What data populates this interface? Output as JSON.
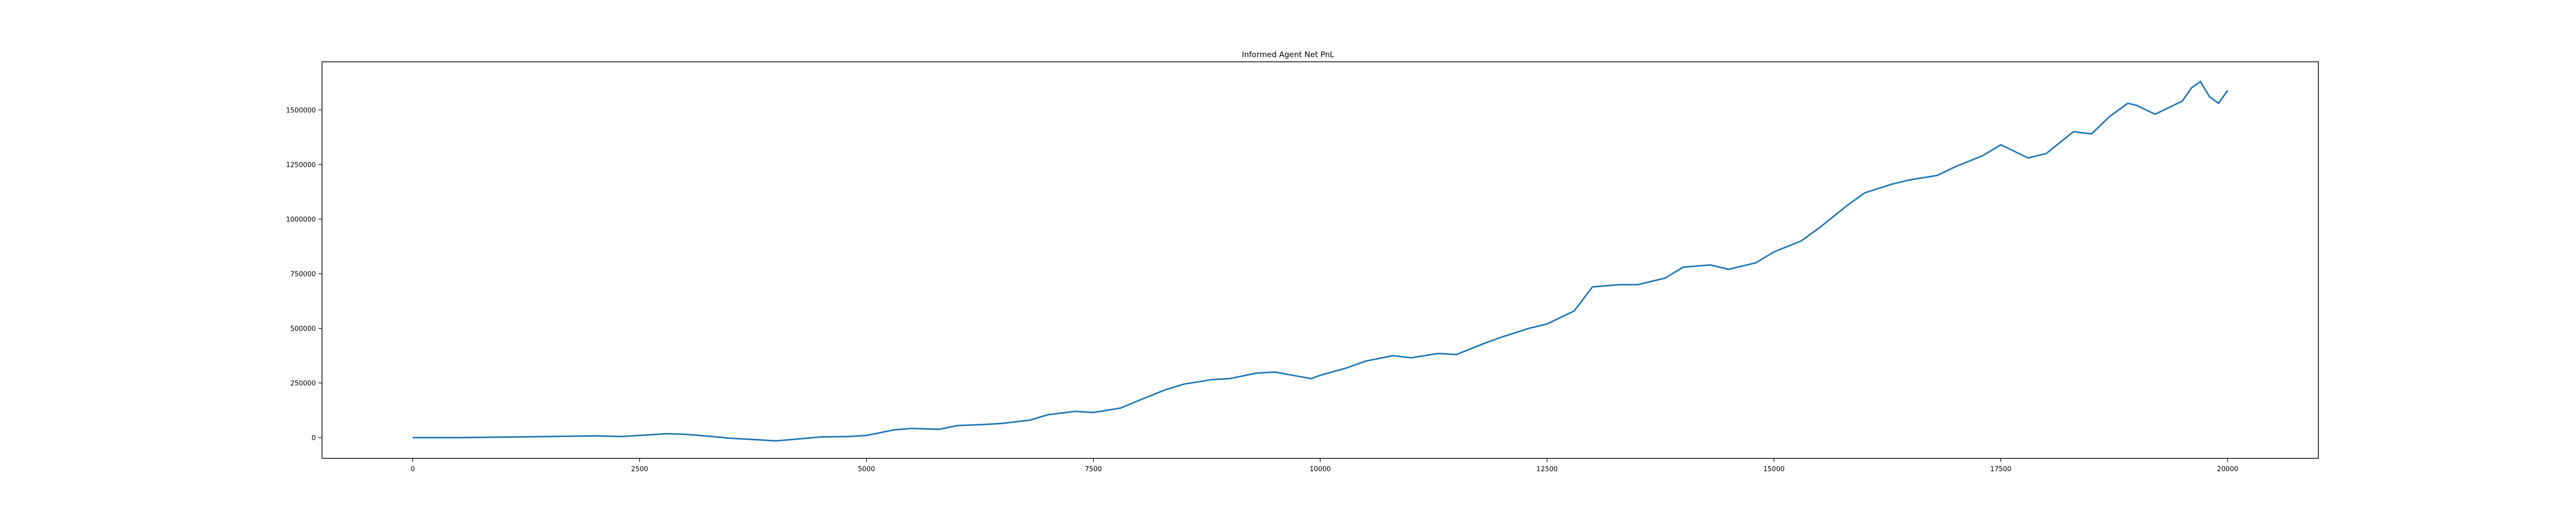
{
  "chart_data": {
    "type": "line",
    "title": "Informed Agent Net PnL",
    "xlabel": "",
    "ylabel": "",
    "xlim": [
      -1000,
      21000
    ],
    "ylim": [
      -95000,
      1720000
    ],
    "x_ticks": [
      0,
      2500,
      5000,
      7500,
      10000,
      12500,
      15000,
      17500,
      20000
    ],
    "y_ticks": [
      0,
      250000,
      500000,
      750000,
      1000000,
      1250000,
      1500000
    ],
    "grid": false,
    "legend": "none",
    "series": [
      {
        "color": "#1f77b4",
        "x": [
          0,
          500,
          1000,
          1500,
          2000,
          2300,
          2500,
          2800,
          3000,
          3300,
          3500,
          3800,
          4000,
          4200,
          4500,
          4800,
          5000,
          5300,
          5500,
          5800,
          6000,
          6300,
          6500,
          6800,
          7000,
          7300,
          7500,
          7800,
          8000,
          8300,
          8500,
          8800,
          9000,
          9300,
          9500,
          9700,
          9900,
          10000,
          10300,
          10500,
          10800,
          11000,
          11300,
          11500,
          11800,
          12000,
          12300,
          12500,
          12800,
          13000,
          13300,
          13500,
          13800,
          14000,
          14300,
          14500,
          14800,
          15000,
          15300,
          15500,
          15800,
          16000,
          16300,
          16500,
          16800,
          17000,
          17300,
          17500,
          17700,
          17800,
          18000,
          18300,
          18500,
          18700,
          18900,
          19000,
          19200,
          19500,
          19600,
          19700,
          19800,
          19900,
          20000
        ],
        "y": [
          0,
          0,
          2000,
          5000,
          8000,
          5000,
          10000,
          18000,
          15000,
          5000,
          -3000,
          -10000,
          -15000,
          -8000,
          3000,
          5000,
          10000,
          35000,
          42000,
          38000,
          55000,
          60000,
          65000,
          80000,
          105000,
          120000,
          115000,
          135000,
          170000,
          220000,
          245000,
          265000,
          270000,
          295000,
          300000,
          285000,
          270000,
          285000,
          320000,
          350000,
          375000,
          365000,
          385000,
          380000,
          430000,
          460000,
          500000,
          520000,
          580000,
          690000,
          700000,
          700000,
          730000,
          780000,
          790000,
          770000,
          800000,
          850000,
          900000,
          960000,
          1060000,
          1120000,
          1160000,
          1180000,
          1200000,
          1240000,
          1290000,
          1340000,
          1300000,
          1280000,
          1300000,
          1400000,
          1390000,
          1470000,
          1530000,
          1520000,
          1480000,
          1540000,
          1600000,
          1630000,
          1560000,
          1530000,
          1590000
        ]
      }
    ]
  }
}
